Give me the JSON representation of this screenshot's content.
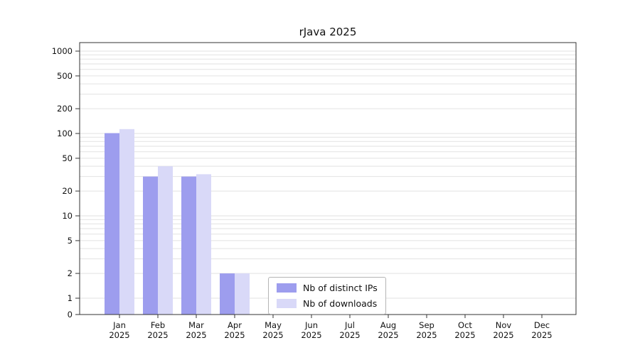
{
  "chart_data": {
    "type": "bar",
    "title": "rJava 2025",
    "categories": [
      "Jan",
      "Feb",
      "Mar",
      "Apr",
      "May",
      "Jun",
      "Jul",
      "Aug",
      "Sep",
      "Oct",
      "Nov",
      "Dec"
    ],
    "x_year": "2025",
    "y_ticks": [
      0,
      1,
      2,
      5,
      10,
      20,
      50,
      100,
      200,
      500,
      1000
    ],
    "y_scale": "log",
    "ylim": [
      0,
      1000
    ],
    "grid": "horizontal minor log gridlines",
    "legend_position": "inside bottom-center",
    "series": [
      {
        "name": "Nb of distinct IPs",
        "color": "#9d9dee",
        "values": [
          101,
          30,
          30,
          2,
          0,
          0,
          0,
          0,
          0,
          0,
          0,
          0
        ]
      },
      {
        "name": "Nb of downloads",
        "color": "#d9d9f8",
        "values": [
          113,
          40,
          32,
          2,
          0,
          0,
          0,
          0,
          0,
          0,
          0,
          0
        ]
      }
    ],
    "colors": {
      "gridline": "#e2e2e2",
      "axis": "#333333",
      "text": "#111111"
    }
  }
}
